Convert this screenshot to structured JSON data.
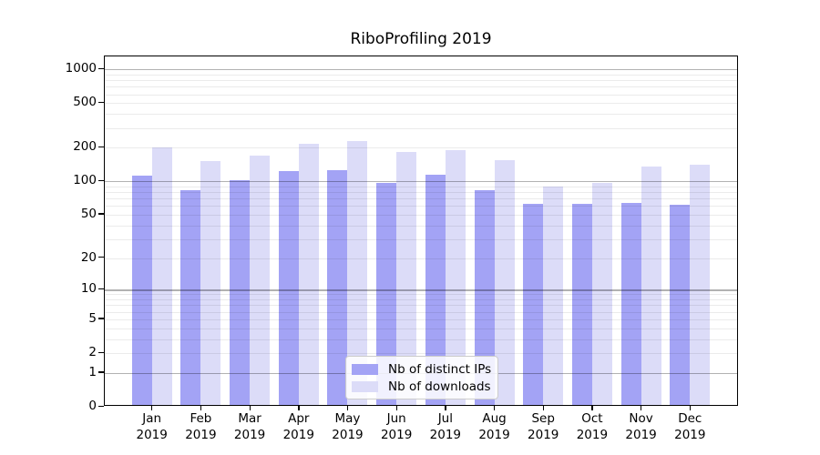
{
  "figure": {
    "background": "#ffffff",
    "text_color": "#000000"
  },
  "chart_data": {
    "type": "bar",
    "title": "RiboProfiling 2019",
    "scale": "log1p",
    "grid": "on",
    "legend_position": "lower center",
    "categories": [
      "Jan",
      "Feb",
      "Mar",
      "Apr",
      "May",
      "Jun",
      "Jul",
      "Aug",
      "Sep",
      "Oct",
      "Nov",
      "Dec"
    ],
    "x_year_label": "2019",
    "series": [
      {
        "name": "Nb of distinct IPs",
        "color": "#a3a3f5",
        "values": [
          108,
          80,
          98,
          118,
          122,
          94,
          110,
          80,
          60,
          60,
          62,
          59
        ]
      },
      {
        "name": "Nb of downloads",
        "color": "#dcdcf8",
        "values": [
          192,
          146,
          165,
          210,
          222,
          178,
          183,
          148,
          87,
          93,
          130,
          136
        ]
      }
    ],
    "yticks": [
      0,
      1,
      2,
      5,
      10,
      20,
      50,
      100,
      200,
      500,
      1000
    ],
    "ylim": [
      0,
      1300
    ],
    "major_gridlines": [
      1,
      10,
      100,
      1000
    ],
    "xlabel": "",
    "ylabel": ""
  }
}
